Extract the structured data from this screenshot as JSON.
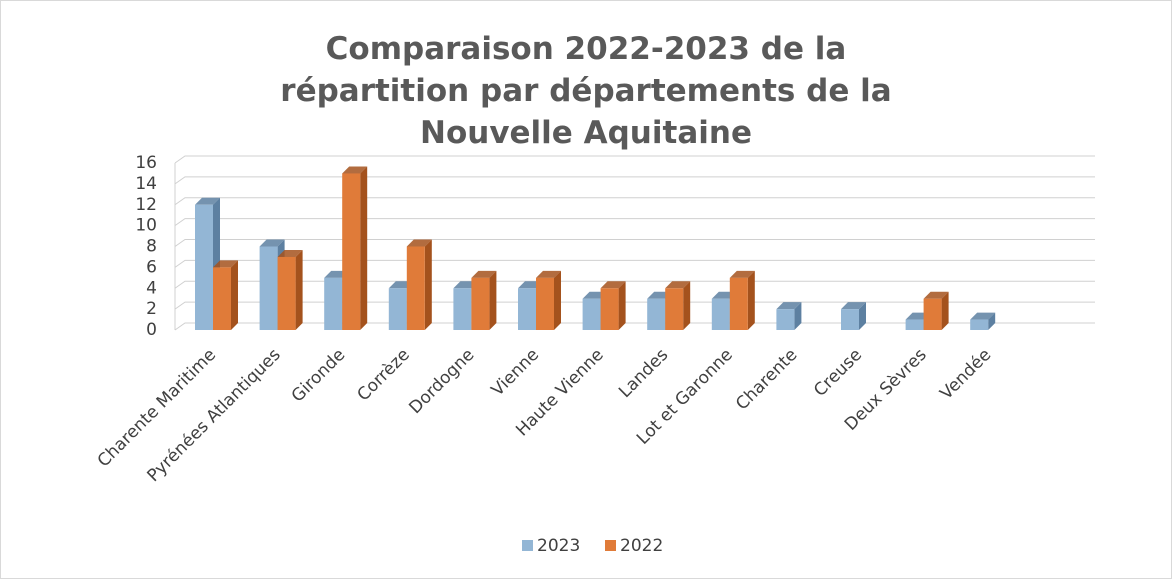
{
  "chart_data": {
    "type": "bar3d",
    "title": "Comparaison 2022-2023 de la répartition par départements de la Nouvelle Aquitaine",
    "categories": [
      "Charente Maritime",
      "Pyrénées Atlantiques",
      "Gironde",
      "Corrèze",
      "Dordogne",
      "Vienne",
      "Haute Vienne",
      "Landes",
      "Lot et Garonne",
      "Charente",
      "Creuse",
      "Deux Sèvres",
      "Vendée"
    ],
    "series": [
      {
        "name": "2023",
        "color": "#93b6d5",
        "side": "#5d80a1",
        "values": [
          12,
          8,
          5,
          4,
          4,
          4,
          3,
          3,
          3,
          2,
          2,
          1,
          1
        ]
      },
      {
        "name": "2022",
        "color": "#e07b39",
        "side": "#a4521d",
        "values": [
          6,
          7,
          15,
          8,
          5,
          5,
          4,
          4,
          5,
          null,
          null,
          3,
          null
        ]
      }
    ],
    "ylim": [
      0,
      16
    ],
    "yticks": [
      0,
      2,
      4,
      6,
      8,
      10,
      12,
      14,
      16
    ],
    "grid": true,
    "legend": "bottom"
  }
}
